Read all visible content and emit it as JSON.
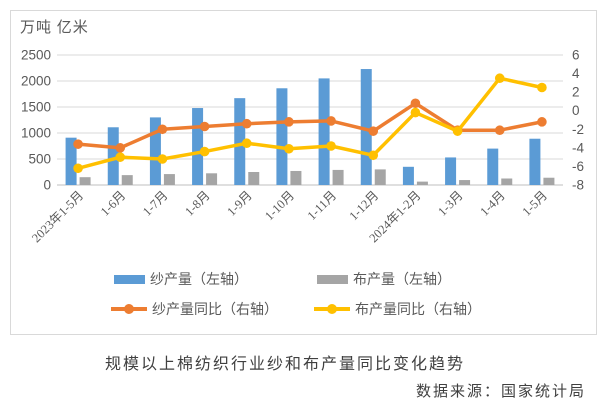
{
  "unit_label": "万吨 亿米",
  "title": "规模以上棉纺织行业纱和布产量同比变化趋势",
  "source": "数据来源：国家统计局",
  "colors": {
    "yarn_bar": "#5B9BD5",
    "cloth_bar": "#A5A5A5",
    "yarn_yoy_line": "#ED7D31",
    "cloth_yoy_line": "#FFC000",
    "gridline": "#D9D9D9",
    "axis_line": "#BFBFBF",
    "tick_text": "#595959",
    "title_text": "#404040"
  },
  "legend": {
    "items": [
      {
        "label": "纱产量（左轴）",
        "swatch": "bar",
        "color": "#5B9BD5"
      },
      {
        "label": "布产量（左轴）",
        "swatch": "bar",
        "color": "#A5A5A5"
      },
      {
        "label": "纱产量同比（右轴）",
        "swatch": "line",
        "color": "#ED7D31"
      },
      {
        "label": "布产量同比（右轴）",
        "swatch": "line",
        "color": "#FFC000"
      }
    ]
  },
  "chart_data": {
    "type": "combo (bar + line, dual axis)",
    "categories": [
      "2023年1-5月",
      "1-6月",
      "1-7月",
      "1-8月",
      "1-9月",
      "1-10月",
      "1-11月",
      "1-12月",
      "2024年1-2月",
      "1-3月",
      "1-4月",
      "1-5月"
    ],
    "series": [
      {
        "name": "纱产量（左轴）",
        "type": "bar",
        "axis": "left",
        "color": "#5B9BD5",
        "values": [
          910,
          1110,
          1300,
          1480,
          1670,
          1860,
          2050,
          2230,
          350,
          530,
          700,
          890
        ]
      },
      {
        "name": "布产量（左轴）",
        "type": "bar",
        "axis": "left",
        "color": "#A5A5A5",
        "values": [
          150,
          190,
          210,
          225,
          250,
          270,
          290,
          300,
          65,
          95,
          125,
          140
        ]
      },
      {
        "name": "纱产量同比（右轴）",
        "type": "line",
        "axis": "right",
        "color": "#ED7D31",
        "values": [
          -3.6,
          -4.0,
          -2.0,
          -1.7,
          -1.4,
          -1.2,
          -1.1,
          -2.2,
          0.8,
          -2.1,
          -2.1,
          -1.2
        ]
      },
      {
        "name": "布产量同比（右轴）",
        "type": "line",
        "axis": "right",
        "color": "#FFC000",
        "values": [
          -6.2,
          -5.0,
          -5.2,
          -4.4,
          -3.5,
          -4.1,
          -3.8,
          -4.8,
          -0.2,
          -2.2,
          3.5,
          2.5
        ]
      }
    ],
    "left_axis": {
      "title": "万吨 亿米",
      "min": 0,
      "max": 2500,
      "step": 500,
      "ticks": [
        0,
        500,
        1000,
        1500,
        2000,
        2500
      ]
    },
    "right_axis": {
      "min": -8,
      "max": 6,
      "step": 2,
      "ticks": [
        -8,
        -6,
        -4,
        -2,
        0,
        2,
        4,
        6
      ]
    },
    "grid": "horizontal gridlines at left-axis ticks",
    "legend_position": "bottom, two rows",
    "x_label_rotation": -45
  }
}
